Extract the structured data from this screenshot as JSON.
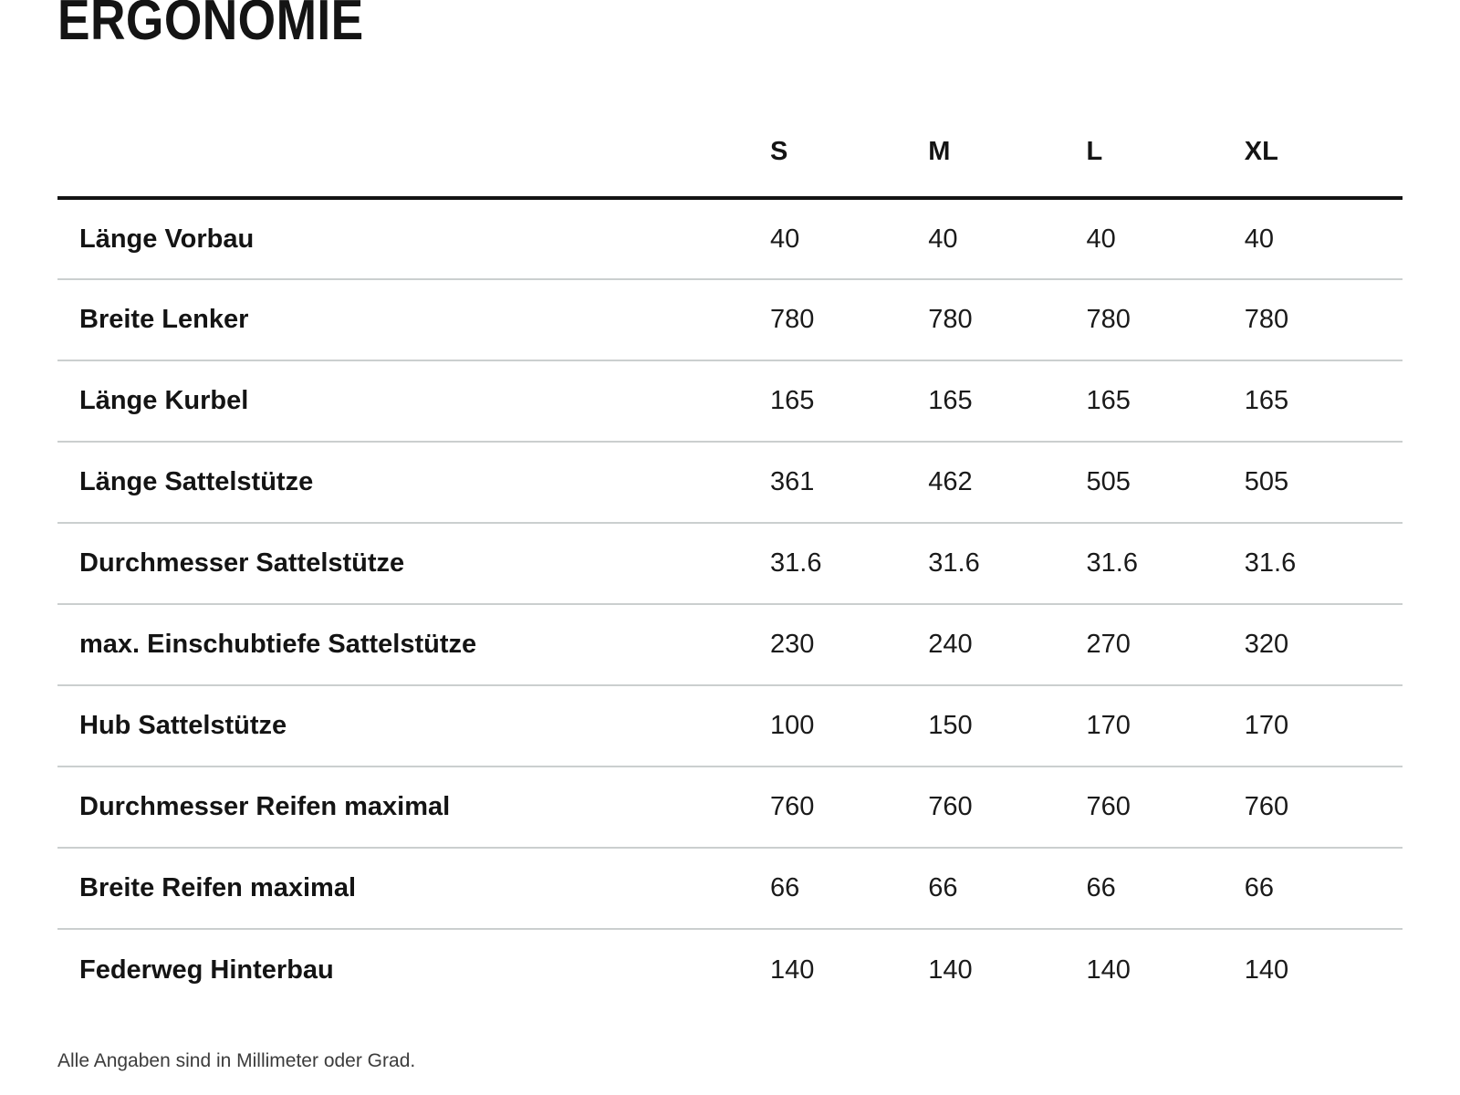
{
  "page": {
    "title": "ERGONOMIE",
    "footnote": "Alle Angaben sind in Millimeter oder Grad."
  },
  "table": {
    "size_columns": [
      "S",
      "M",
      "L",
      "XL"
    ],
    "rows": [
      {
        "label": "Länge Vorbau",
        "values": [
          "40",
          "40",
          "40",
          "40"
        ]
      },
      {
        "label": "Breite Lenker",
        "values": [
          "780",
          "780",
          "780",
          "780"
        ]
      },
      {
        "label": "Länge Kurbel",
        "values": [
          "165",
          "165",
          "165",
          "165"
        ]
      },
      {
        "label": "Länge Sattelstütze",
        "values": [
          "361",
          "462",
          "505",
          "505"
        ]
      },
      {
        "label": "Durchmesser Sattelstütze",
        "values": [
          "31.6",
          "31.6",
          "31.6",
          "31.6"
        ]
      },
      {
        "label": "max. Einschubtiefe Sattelstütze",
        "values": [
          "230",
          "240",
          "270",
          "320"
        ]
      },
      {
        "label": "Hub Sattelstütze",
        "values": [
          "100",
          "150",
          "170",
          "170"
        ]
      },
      {
        "label": "Durchmesser Reifen maximal",
        "values": [
          "760",
          "760",
          "760",
          "760"
        ]
      },
      {
        "label": "Breite Reifen maximal",
        "values": [
          "66",
          "66",
          "66",
          "66"
        ]
      },
      {
        "label": "Federweg Hinterbau",
        "values": [
          "140",
          "140",
          "140",
          "140"
        ]
      }
    ],
    "colors": {
      "header_rule": "#141414",
      "row_divider": "#cbcfcf",
      "text": "#1a1a1a",
      "footnote_text": "#3c3c3c"
    }
  }
}
